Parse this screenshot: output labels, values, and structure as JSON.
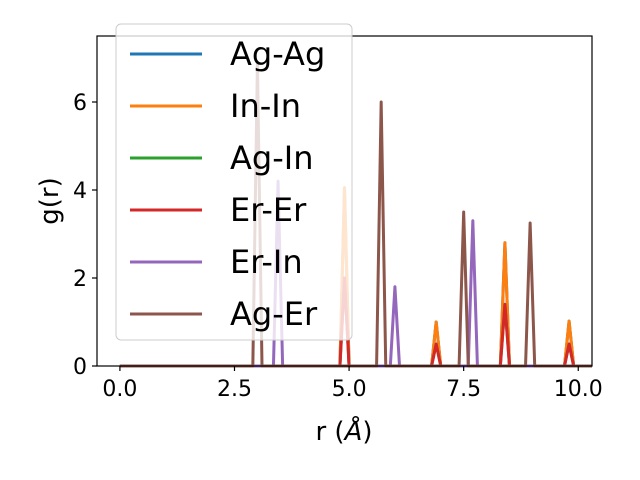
{
  "chart_data": {
    "type": "line",
    "xlabel_base": "r (",
    "xlabel_unit": "Å",
    "xlabel_end": ")",
    "ylabel": "g(r)",
    "xlim": [
      -0.5,
      10.3
    ],
    "ylim": [
      0,
      7.5
    ],
    "xticks": [
      0.0,
      2.5,
      5.0,
      7.5,
      10.0
    ],
    "xtick_labels": [
      "0.0",
      "2.5",
      "5.0",
      "7.5",
      "10.0"
    ],
    "yticks": [
      0,
      2,
      4,
      6
    ],
    "ytick_labels": [
      "0",
      "2",
      "4",
      "6"
    ],
    "grid": false,
    "legend_position": "upper-left",
    "peak_halfwidth": 0.1,
    "series": [
      {
        "name": "Ag-Ag",
        "color": "#1f77b4",
        "peaks": [
          [
            4.9,
            4.05
          ],
          [
            6.9,
            1.0
          ],
          [
            8.4,
            2.8
          ],
          [
            9.8,
            1.02
          ]
        ]
      },
      {
        "name": "In-In",
        "color": "#ff7f0e",
        "peaks": [
          [
            4.9,
            4.05
          ],
          [
            6.9,
            1.0
          ],
          [
            8.4,
            2.8
          ],
          [
            9.8,
            1.02
          ]
        ]
      },
      {
        "name": "Ag-In",
        "color": "#2ca02c",
        "peaks": [
          [
            4.9,
            2.0
          ],
          [
            6.9,
            0.5
          ],
          [
            8.4,
            1.4
          ],
          [
            9.8,
            0.5
          ]
        ]
      },
      {
        "name": "Er-Er",
        "color": "#d62728",
        "peaks": [
          [
            4.9,
            2.0
          ],
          [
            6.9,
            0.5
          ],
          [
            8.4,
            1.4
          ],
          [
            9.8,
            0.5
          ]
        ]
      },
      {
        "name": "Er-In",
        "color": "#9467bd",
        "peaks": [
          [
            3.45,
            4.2
          ],
          [
            6.0,
            1.8
          ],
          [
            7.7,
            3.3
          ]
        ]
      },
      {
        "name": "Ag-Er",
        "color": "#8c564b",
        "peaks": [
          [
            3.0,
            6.9
          ],
          [
            5.7,
            6.0
          ],
          [
            7.5,
            3.5
          ],
          [
            8.95,
            3.25
          ]
        ]
      }
    ]
  }
}
